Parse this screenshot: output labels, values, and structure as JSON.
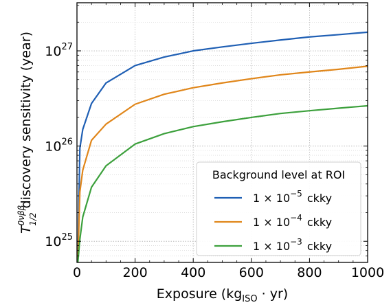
{
  "chart_data": {
    "type": "line",
    "xlabel": {
      "main": "Exposure (kg",
      "sub": "ISO",
      "tail": " · yr)"
    },
    "ylabel": {
      "symbol": "T",
      "sup": "0νββ",
      "sub": "1/2",
      "text": " discovery sensitivity (year)"
    },
    "xlim": [
      0,
      1000
    ],
    "ylim": [
      6e+24,
      3.2e+27
    ],
    "yscale": "log",
    "grid": true,
    "x_ticks": [
      0,
      200,
      400,
      600,
      800,
      1000
    ],
    "x_tick_labels": [
      "0",
      "200",
      "400",
      "600",
      "800",
      "1000"
    ],
    "y_ticks": [
      {
        "value": 1e+25,
        "base": "10",
        "exp": "25"
      },
      {
        "value": 1e+26,
        "base": "10",
        "exp": "26"
      },
      {
        "value": 1e+27,
        "base": "10",
        "exp": "27"
      }
    ],
    "legend": {
      "title": "Background level at ROI",
      "placement": "lower-right",
      "entries": [
        {
          "series": 0,
          "coef": "1 × 10",
          "exp": "−5",
          "unit": "ckky"
        },
        {
          "series": 1,
          "coef": "1 × 10",
          "exp": "−4",
          "unit": "ckky"
        },
        {
          "series": 2,
          "coef": "1 × 10",
          "exp": "−3",
          "unit": "ckky"
        }
      ]
    },
    "series": [
      {
        "color": "#1f5fb4",
        "x": [
          3,
          10,
          20,
          50,
          100,
          200,
          300,
          400,
          500,
          600,
          700,
          800,
          900,
          1000
        ],
        "y": [
          6e+24,
          9.5e+25,
          1.5e+26,
          2.8e+26,
          4.6e+26,
          7e+26,
          8.6e+26,
          1e+27,
          1.1e+27,
          1.2e+27,
          1.3e+27,
          1.4e+27,
          1.48e+27,
          1.57e+27
        ]
      },
      {
        "color": "#e0861a",
        "x": [
          3,
          10,
          20,
          50,
          100,
          200,
          300,
          400,
          500,
          600,
          700,
          800,
          900,
          1000
        ],
        "y": [
          6e+24,
          3.3e+25,
          5.6e+25,
          1.15e+26,
          1.7e+26,
          2.75e+26,
          3.5e+26,
          4.1e+26,
          4.6e+26,
          5.1e+26,
          5.6e+26,
          6e+26,
          6.4e+26,
          6.9e+26
        ]
      },
      {
        "color": "#3ca03c",
        "x": [
          3,
          10,
          20,
          50,
          100,
          200,
          300,
          400,
          500,
          600,
          700,
          800,
          900,
          1000
        ],
        "y": [
          6e+24,
          1.05e+25,
          1.8e+25,
          3.7e+25,
          6.2e+25,
          1.05e+26,
          1.35e+26,
          1.6e+26,
          1.8e+26,
          2e+26,
          2.2e+26,
          2.35e+26,
          2.5e+26,
          2.65e+26
        ]
      }
    ]
  }
}
